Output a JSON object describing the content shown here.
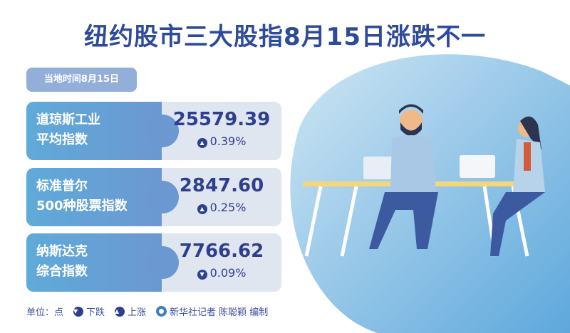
{
  "title": "纽约股市三大股指8月15日涨跌不一",
  "date_badge": "当地时间8月15日",
  "indices": [
    {
      "name_line1": "道琼斯工业",
      "name_line2": "平均指数",
      "value": "25579.39",
      "direction": "up",
      "change": "0.39%"
    },
    {
      "name_line1": "标准普尔",
      "name_line2": "500种股票指数",
      "value": "2847.60",
      "direction": "up",
      "change": "0.25%"
    },
    {
      "name_line1": "纳斯达克",
      "name_line2": "综合指数",
      "value": "7766.62",
      "direction": "down",
      "change": "0.09%"
    }
  ],
  "footer": {
    "unit": "单位：点",
    "down_legend": "下跌",
    "up_legend": "上涨",
    "credit": "新华社记者 陈聪颖 编制"
  },
  "icons": {
    "up": "▲",
    "down": "▼"
  },
  "colors": {
    "title": "#2e4a9a",
    "card_left": "#5faad9",
    "card_right": "#e0e6ef",
    "value": "#2e3f8f"
  }
}
